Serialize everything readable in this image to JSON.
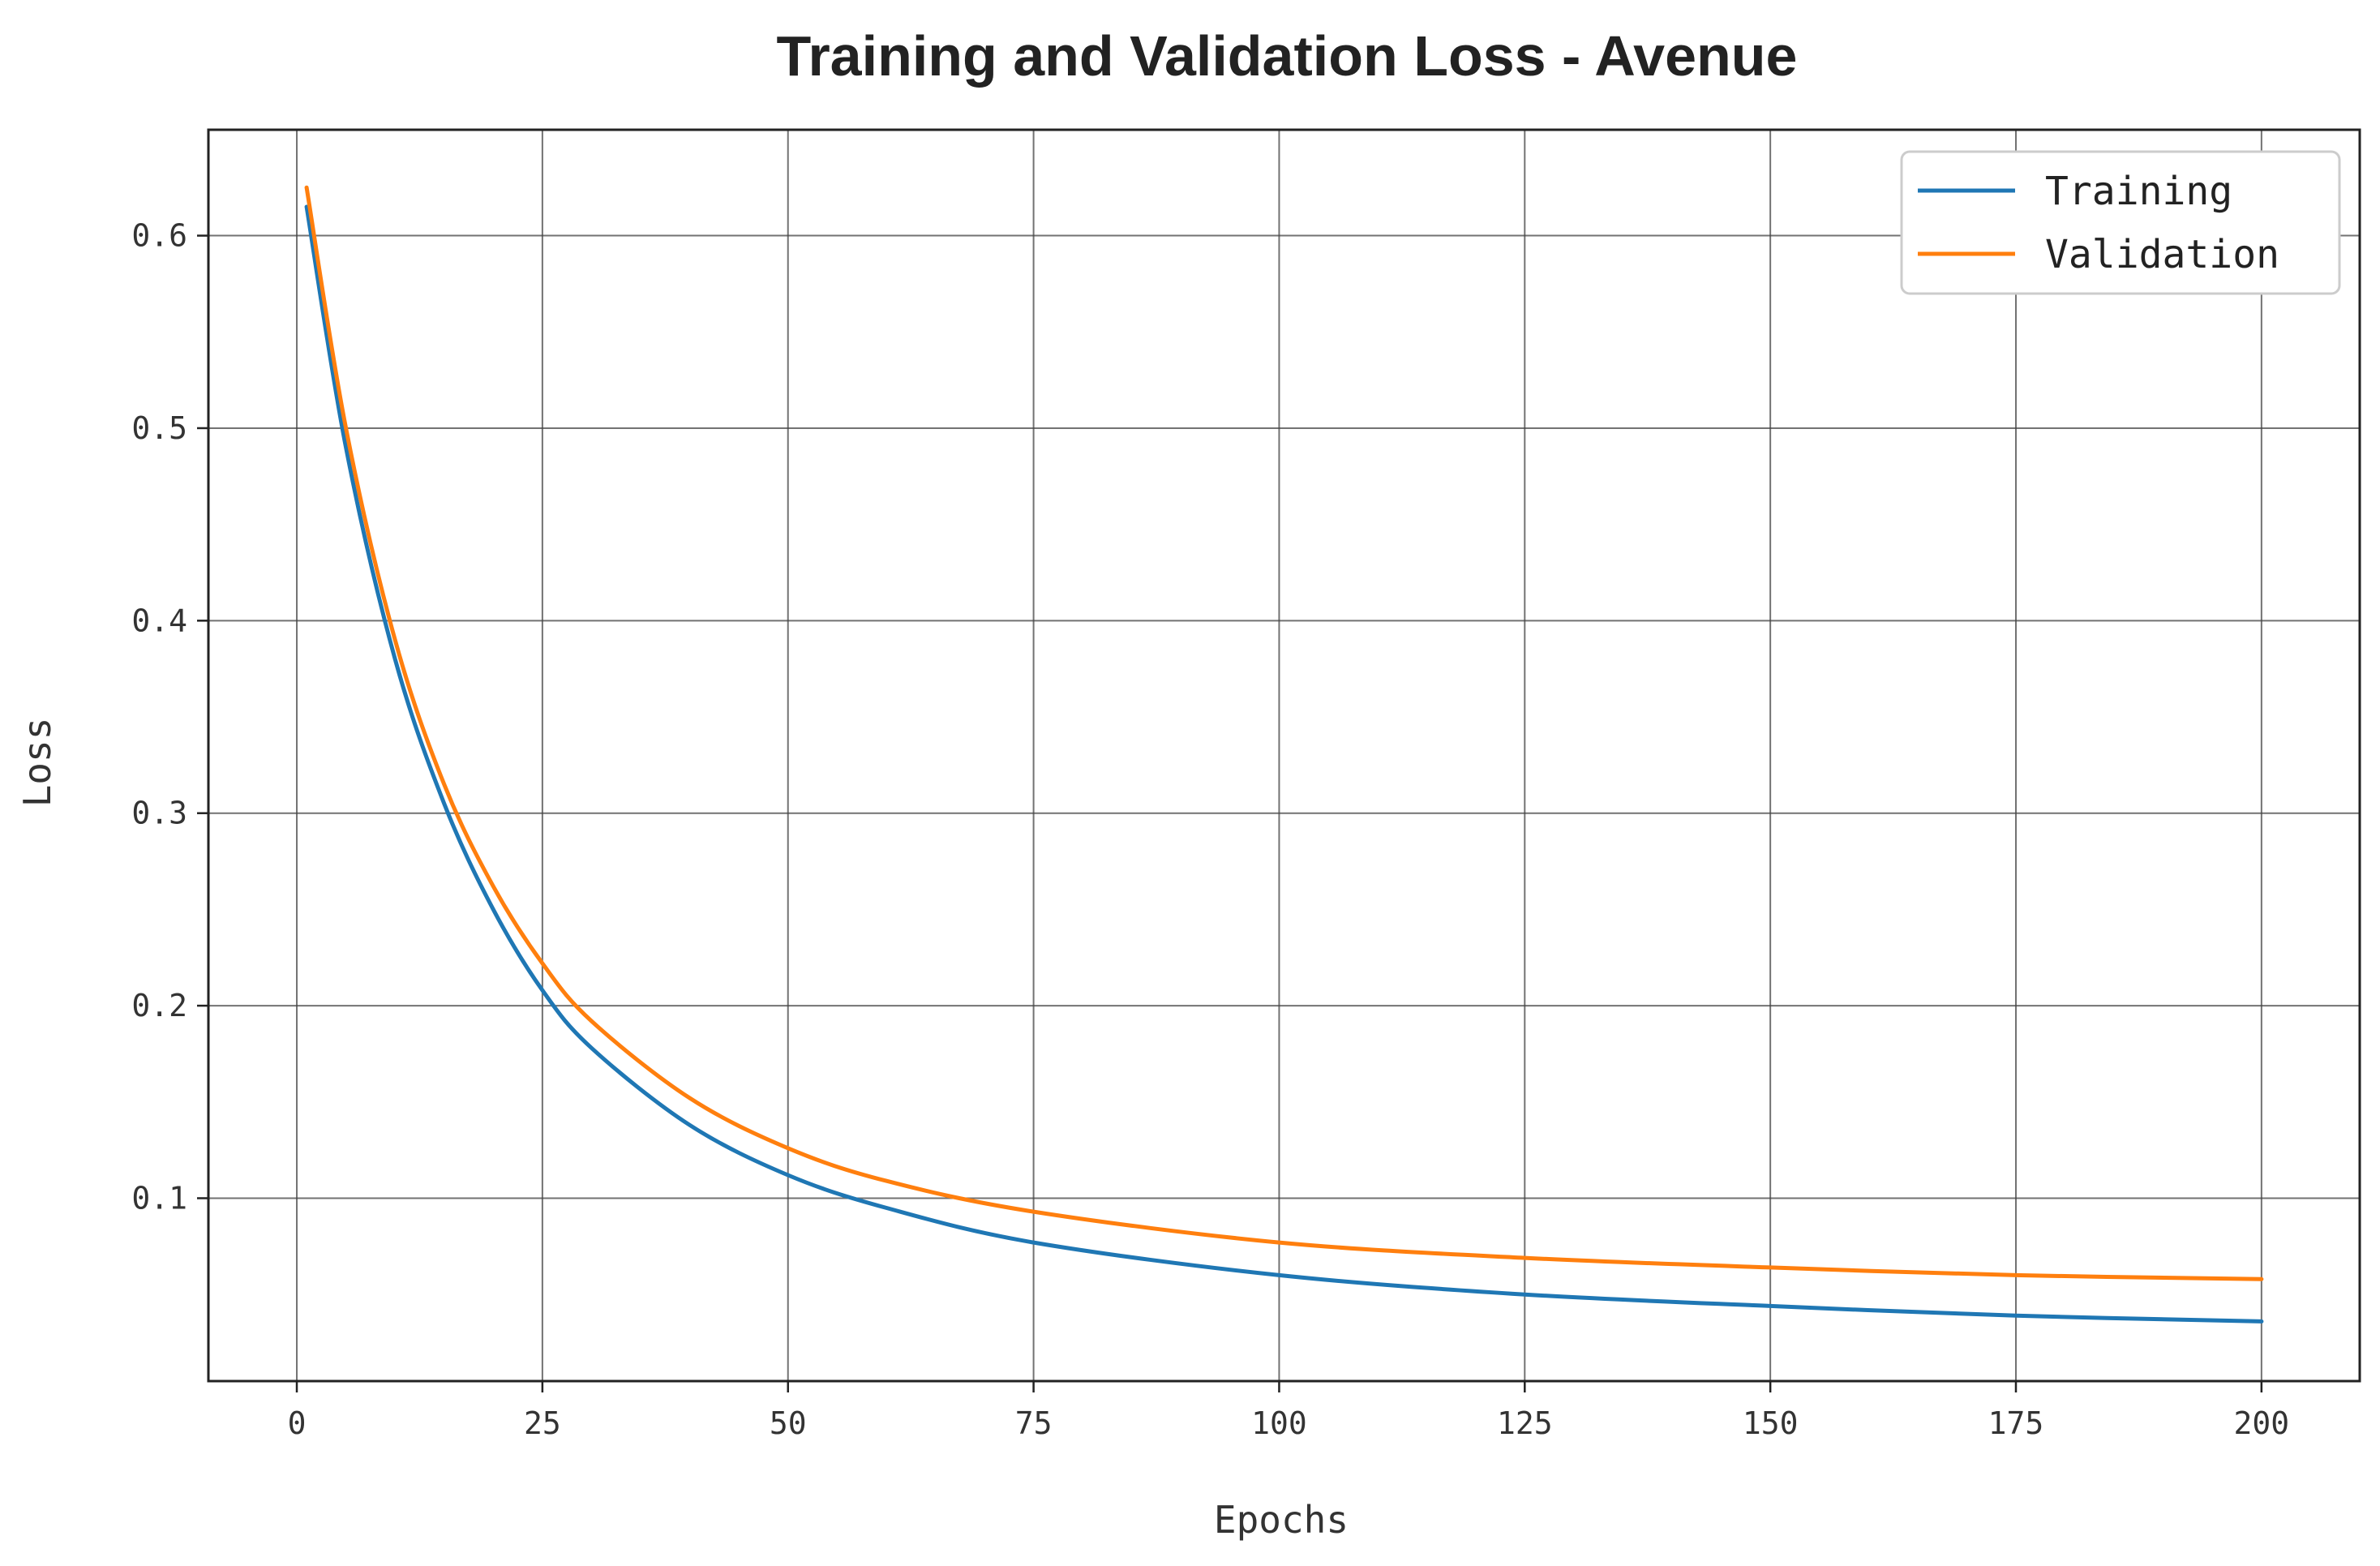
{
  "chart_data": {
    "type": "line",
    "title": "Training and Validation Loss - Avenue",
    "xlabel": "Epochs",
    "ylabel": "Loss",
    "xlim": [
      -9,
      210
    ],
    "ylim": [
      0.005,
      0.655
    ],
    "xticks": [
      0,
      25,
      50,
      75,
      100,
      125,
      150,
      175,
      200
    ],
    "xtick_labels": [
      "0",
      "25",
      "50",
      "75",
      "100",
      "125",
      "150",
      "175",
      "200"
    ],
    "yticks": [
      0.1,
      0.2,
      0.3,
      0.4,
      0.5,
      0.6
    ],
    "ytick_labels": [
      "0.1",
      "0.2",
      "0.3",
      "0.4",
      "0.5",
      "0.6"
    ],
    "grid": true,
    "legend_position": "top-right",
    "x": [
      1,
      5,
      10,
      15,
      20,
      25,
      30,
      40,
      50,
      60,
      75,
      100,
      125,
      150,
      175,
      200
    ],
    "series": [
      {
        "name": "Training",
        "color": "#1f77b4",
        "values": [
          0.615,
          0.49,
          0.38,
          0.305,
          0.25,
          0.208,
          0.178,
          0.138,
          0.112,
          0.095,
          0.077,
          0.06,
          0.05,
          0.044,
          0.039,
          0.036
        ]
      },
      {
        "name": "Validation",
        "color": "#ff7f0e",
        "values": [
          0.625,
          0.5,
          0.39,
          0.315,
          0.262,
          0.222,
          0.192,
          0.152,
          0.126,
          0.109,
          0.093,
          0.077,
          0.069,
          0.064,
          0.06,
          0.058
        ]
      }
    ]
  }
}
